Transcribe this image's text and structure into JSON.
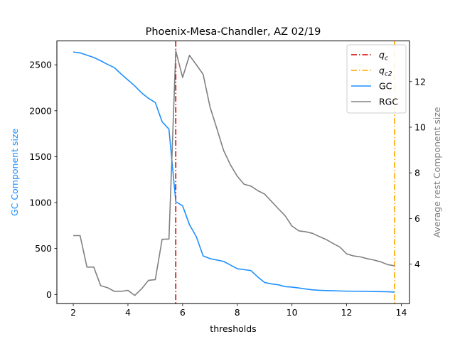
{
  "chart_data": {
    "type": "line",
    "title": "Phoenix-Mesa-Chandler, AZ 02/19",
    "xlabel": "thresholds",
    "ylabel_left": "GC Component size",
    "ylabel_right": "Average rest Component size",
    "xlim": [
      1.4,
      14.3
    ],
    "ylim_left": [
      -100,
      2760
    ],
    "ylim_right": [
      2.27,
      13.78
    ],
    "xticks": [
      2,
      4,
      6,
      8,
      10,
      12,
      14
    ],
    "yticks_left": [
      0,
      500,
      1000,
      1500,
      2000,
      2500
    ],
    "yticks_right": [
      4,
      6,
      8,
      10,
      12
    ],
    "grid": false,
    "legend_position": "top-right",
    "colors": {
      "gc": "#1e90ff",
      "rgc": "#808080",
      "qc": "#cc0000",
      "qc2": "#ffa500",
      "gc_axis_label": "#1e90ff",
      "rgc_axis_label": "#808080"
    },
    "legend": [
      {
        "key": "qc",
        "base": "q",
        "sub": "c",
        "style": "dashdot",
        "color": "#cc0000"
      },
      {
        "key": "qc2",
        "base": "q",
        "sub": "c2",
        "style": "dashdot",
        "color": "#ffa500"
      },
      {
        "key": "gc",
        "label": "GC",
        "style": "solid",
        "color": "#1e90ff"
      },
      {
        "key": "rgc",
        "label": "RGC",
        "style": "solid",
        "color": "#808080"
      }
    ],
    "vlines": [
      {
        "key": "qc",
        "x": 5.75,
        "color": "#cc0000"
      },
      {
        "key": "qc2",
        "x": 13.75,
        "color": "#ffa500"
      }
    ],
    "series": [
      {
        "name": "GC",
        "axis": "left",
        "x": [
          2,
          2.25,
          2.5,
          2.75,
          3,
          3.25,
          3.5,
          3.75,
          4,
          4.25,
          4.5,
          4.75,
          5,
          5.25,
          5.5,
          5.75,
          6,
          6.25,
          6.5,
          6.75,
          7,
          7.25,
          7.5,
          7.75,
          8,
          8.25,
          8.5,
          8.75,
          9,
          9.25,
          9.5,
          9.75,
          10,
          10.25,
          10.5,
          10.75,
          11,
          11.25,
          11.5,
          11.75,
          12,
          12.25,
          12.5,
          12.75,
          13,
          13.25,
          13.5,
          13.75
        ],
        "values": [
          2640,
          2630,
          2605,
          2580,
          2545,
          2505,
          2470,
          2400,
          2335,
          2270,
          2195,
          2135,
          2090,
          1880,
          1800,
          1010,
          965,
          760,
          630,
          420,
          390,
          375,
          360,
          320,
          280,
          270,
          260,
          190,
          130,
          115,
          105,
          85,
          80,
          70,
          60,
          50,
          45,
          42,
          40,
          38,
          36,
          35,
          35,
          33,
          32,
          31,
          30,
          25
        ]
      },
      {
        "name": "RGC",
        "axis": "right",
        "x": [
          2,
          2.25,
          2.5,
          2.75,
          3,
          3.25,
          3.5,
          3.75,
          4,
          4.25,
          4.5,
          4.75,
          5,
          5.25,
          5.5,
          5.75,
          6,
          6.25,
          6.5,
          6.75,
          7,
          7.25,
          7.5,
          7.75,
          8,
          8.25,
          8.5,
          8.75,
          9,
          9.25,
          9.5,
          9.75,
          10,
          10.25,
          10.5,
          10.75,
          11,
          11.25,
          11.5,
          11.75,
          12,
          12.25,
          12.5,
          12.75,
          13,
          13.25,
          13.5,
          13.75
        ],
        "values": [
          5.25,
          5.25,
          3.87,
          3.87,
          3.06,
          2.97,
          2.81,
          2.81,
          2.85,
          2.63,
          2.92,
          3.29,
          3.32,
          5.09,
          5.1,
          13.35,
          12.18,
          13.15,
          12.74,
          12.32,
          10.9,
          9.95,
          8.98,
          8.35,
          7.85,
          7.5,
          7.42,
          7.22,
          7.07,
          6.75,
          6.43,
          6.12,
          5.67,
          5.46,
          5.42,
          5.35,
          5.21,
          5.08,
          4.91,
          4.75,
          4.45,
          4.36,
          4.32,
          4.24,
          4.18,
          4.1,
          3.98,
          3.93
        ]
      }
    ]
  }
}
